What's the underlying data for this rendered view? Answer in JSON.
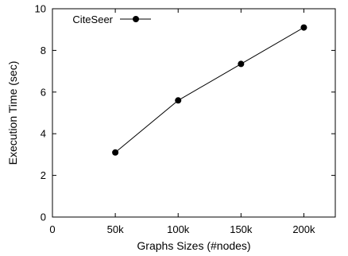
{
  "chart_data": {
    "type": "line",
    "title": "",
    "xlabel": "Graphs Sizes (#nodes)",
    "ylabel": "Execution Time (sec)",
    "xlim": [
      0,
      225000
    ],
    "ylim": [
      0,
      10
    ],
    "x_ticks": [
      {
        "value": 0,
        "label": "0"
      },
      {
        "value": 50000,
        "label": "50k"
      },
      {
        "value": 100000,
        "label": "100k"
      },
      {
        "value": 150000,
        "label": "150k"
      },
      {
        "value": 200000,
        "label": "200k"
      }
    ],
    "y_ticks": [
      {
        "value": 0,
        "label": "0"
      },
      {
        "value": 2,
        "label": "2"
      },
      {
        "value": 4,
        "label": "4"
      },
      {
        "value": 6,
        "label": "6"
      },
      {
        "value": 8,
        "label": "8"
      },
      {
        "value": 10,
        "label": "10"
      }
    ],
    "grid": false,
    "legend_position": "top-left",
    "series": [
      {
        "name": "CiteSeer",
        "color": "#000000",
        "marker": "circle",
        "x": [
          50000,
          100000,
          150000,
          200000
        ],
        "y": [
          3.1,
          5.6,
          7.35,
          9.1
        ]
      }
    ]
  }
}
